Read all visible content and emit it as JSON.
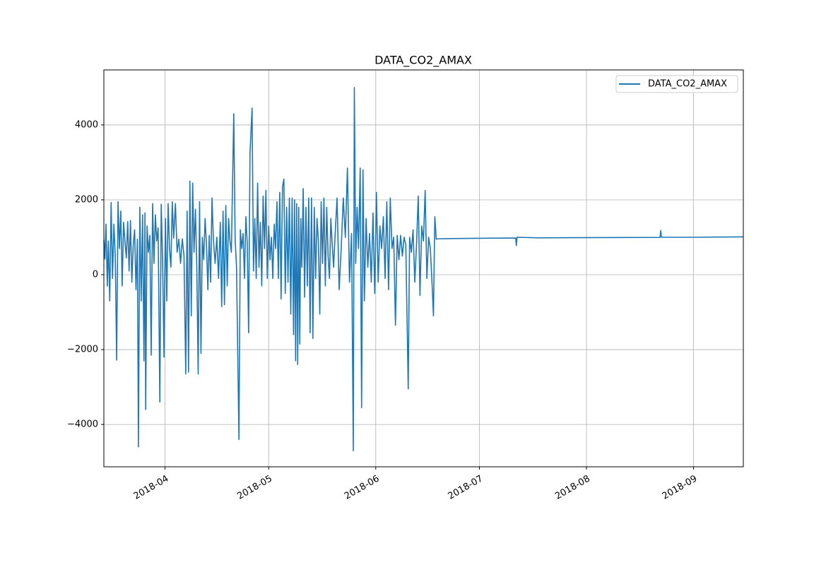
{
  "chart_data": {
    "type": "line",
    "title": "DATA_CO2_AMAX",
    "grid": true,
    "legend": "upper right",
    "xlim": [
      17604.3,
      17789.4
    ],
    "xticks": [
      {
        "value": 17622,
        "label": "2018-04"
      },
      {
        "value": 17652,
        "label": "2018-05"
      },
      {
        "value": 17683,
        "label": "2018-06"
      },
      {
        "value": 17713,
        "label": "2018-07"
      },
      {
        "value": 17744,
        "label": "2018-08"
      },
      {
        "value": 17775,
        "label": "2018-09"
      }
    ],
    "ylim": [
      -5130,
      5470
    ],
    "yticks": [
      {
        "value": -4000,
        "label": "−4000"
      },
      {
        "value": -2000,
        "label": "−2000"
      },
      0,
      2000,
      4000
    ],
    "x": [
      17604.3,
      17604.6,
      17604.9,
      17605.3,
      17605.6,
      17606,
      17606.4,
      17606.8,
      17607.2,
      17607.6,
      17608,
      17608.4,
      17608.8,
      17609.2,
      17609.6,
      17610,
      17610.4,
      17610.8,
      17611.2,
      17611.6,
      17612,
      17612.4,
      17612.8,
      17613.2,
      17613.6,
      17614,
      17614.3,
      17614.7,
      17615.1,
      17615.5,
      17615.9,
      17616.2,
      17616.4,
      17616.8,
      17617.2,
      17617.6,
      17618,
      17618.4,
      17618.8,
      17619.2,
      17619.6,
      17620,
      17620.5,
      17620.9,
      17621.3,
      17621.7,
      17622.1,
      17622.5,
      17622.9,
      17623.3,
      17623.7,
      17624.1,
      17624.5,
      17625,
      17625.5,
      17626,
      17626.5,
      17627,
      17627.5,
      17628,
      17628.4,
      17628.8,
      17629.2,
      17629.6,
      17630,
      17630.4,
      17630.8,
      17631.2,
      17631.6,
      17632,
      17632.4,
      17632.8,
      17633.2,
      17633.6,
      17634,
      17634.4,
      17634.8,
      17635.2,
      17635.6,
      17636,
      17636.5,
      17637,
      17637.5,
      17638,
      17638.4,
      17638.8,
      17639.2,
      17639.6,
      17640,
      17640.4,
      17640.8,
      17641.2,
      17641.9,
      17642.3,
      17642.7,
      17643.4,
      17643.8,
      17644.2,
      17644.6,
      17645,
      17645.4,
      17645.8,
      17646.2,
      17646.6,
      17647.2,
      17647.6,
      17648,
      17648.4,
      17648.8,
      17649.2,
      17649.6,
      17650,
      17650.4,
      17650.8,
      17651.2,
      17651.6,
      17652,
      17652.4,
      17652.8,
      17653.2,
      17653.6,
      17654,
      17654.4,
      17654.8,
      17655.2,
      17655.6,
      17656,
      17656.4,
      17656.8,
      17657.2,
      17657.6,
      17658,
      17658.4,
      17658.8,
      17659.2,
      17659.5,
      17659.8,
      17660.1,
      17660.4,
      17660.7,
      17661,
      17661.3,
      17661.6,
      17662,
      17662.4,
      17662.8,
      17663.2,
      17663.6,
      17664,
      17664.4,
      17664.8,
      17665.2,
      17665.6,
      17666,
      17666.4,
      17666.8,
      17667.2,
      17667.6,
      17668,
      17668.4,
      17668.8,
      17669.2,
      17669.6,
      17670,
      17670.4,
      17670.8,
      17671.2,
      17671.8,
      17672.4,
      17673,
      17673.6,
      17674.2,
      17674.8,
      17675.4,
      17676,
      17676.5,
      17676.8,
      17677.2,
      17677.6,
      17678,
      17678.5,
      17678.9,
      17679.3,
      17679.7,
      17680.2,
      17680.7,
      17681.2,
      17681.7,
      17682.2,
      17682.7,
      17683.2,
      17683.7,
      17684.2,
      17684.7,
      17685.2,
      17685.7,
      17686.2,
      17686.7,
      17687.2,
      17687.7,
      17688.2,
      17688.7,
      17689.2,
      17689.7,
      17690.2,
      17690.7,
      17691.2,
      17691.7,
      17692.4,
      17692.8,
      17693.3,
      17693.8,
      17694.3,
      17694.8,
      17695.3,
      17695.8,
      17696.3,
      17696.8,
      17697.3,
      17697.8,
      17698.3,
      17698.8,
      17699.3,
      17699.7,
      17700.1,
      17700.5,
      17701,
      17705,
      17710,
      17715,
      17723.5,
      17723.7,
      17723.9,
      17730,
      17740,
      17765.3,
      17765.5,
      17765.7,
      17775,
      17789.4
    ],
    "series": [
      {
        "name": "DATA_CO2_AMAX",
        "color": "#1f77b4",
        "values": [
          930,
          420,
          1350,
          -300,
          900,
          -700,
          1930,
          -100,
          1350,
          500,
          -2280,
          1950,
          700,
          1700,
          -300,
          1400,
          900,
          450,
          1420,
          100,
          1450,
          -200,
          800,
          1200,
          -400,
          950,
          -4600,
          1800,
          -700,
          1600,
          -2300,
          1650,
          -3600,
          1300,
          600,
          1050,
          -2150,
          1900,
          300,
          1600,
          900,
          1250,
          -3400,
          1880,
          400,
          -2200,
          1500,
          -700,
          1900,
          700,
          200,
          1950,
          980,
          1900,
          600,
          950,
          300,
          960,
          500,
          -2650,
          1700,
          -2600,
          2500,
          -1100,
          2450,
          600,
          1750,
          200,
          -2650,
          1950,
          -2100,
          1000,
          400,
          1500,
          800,
          -400,
          1050,
          -200,
          2050,
          950,
          300,
          1000,
          -100,
          1400,
          -850,
          1700,
          -800,
          1850,
          -300,
          1500,
          900,
          600,
          4300,
          950,
          200,
          -4400,
          1200,
          700,
          1100,
          -100,
          1550,
          850,
          -1550,
          3250,
          4450,
          100,
          1500,
          -100,
          2450,
          200,
          1400,
          -300,
          2100,
          700,
          2250,
          -100,
          1300,
          400,
          1000,
          -100,
          1350,
          700,
          1950,
          -100,
          2200,
          -650,
          2350,
          2550,
          -500,
          1800,
          -200,
          2050,
          -1050,
          2050,
          -1600,
          2000,
          -2300,
          1900,
          -2400,
          1800,
          -1850,
          1500,
          200,
          2300,
          -600,
          1800,
          -300,
          2050,
          -1550,
          2050,
          -1700,
          1800,
          -100,
          1500,
          900,
          -1050,
          1950,
          300,
          2050,
          -300,
          1800,
          500,
          -100,
          1500,
          800,
          200,
          1000,
          2050,
          -400,
          700,
          2050,
          1000,
          2850,
          -200,
          1100,
          -4700,
          5000,
          300,
          1800,
          700,
          2850,
          -3550,
          2800,
          -700,
          1500,
          200,
          1100,
          -200,
          1650,
          -500,
          2200,
          -200,
          1300,
          700,
          1550,
          -100,
          1950,
          -400,
          2050,
          700,
          1000,
          -1350,
          1050,
          400,
          1050,
          500,
          1000,
          800,
          -3050,
          1000,
          600,
          1200,
          -200,
          800,
          2100,
          -550,
          1300,
          900,
          2250,
          -100,
          1000,
          700,
          -250,
          -1100,
          1550,
          950,
          960,
          965,
          970,
          975,
          980,
          780,
          1000,
          985,
          990,
          995,
          1180,
          1000,
          1000,
          1010
        ]
      }
    ]
  }
}
